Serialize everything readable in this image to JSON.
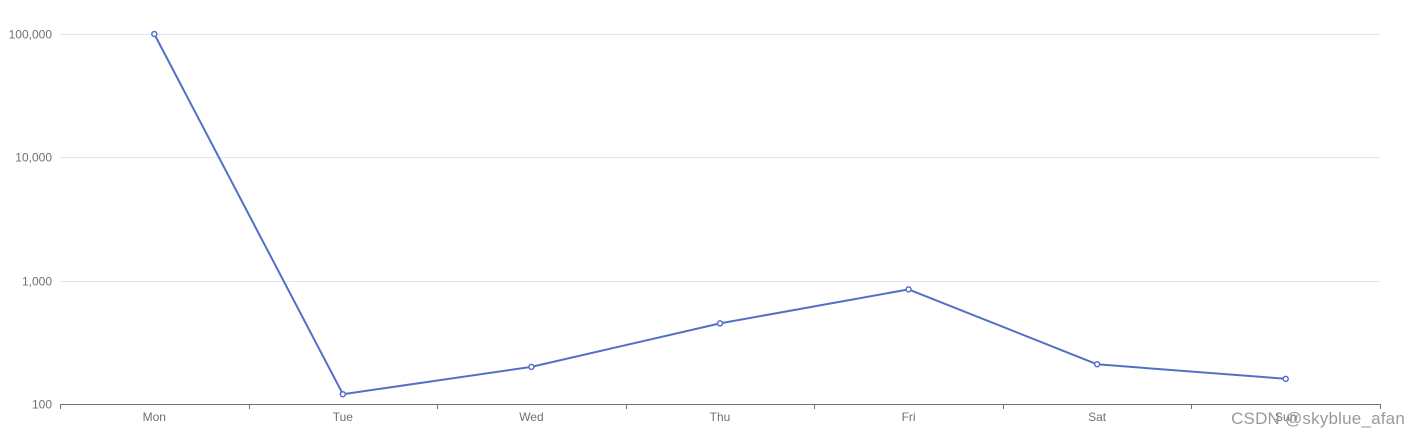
{
  "chart_data": {
    "type": "line",
    "yscale": "log",
    "ylim": [
      100,
      100000
    ],
    "y_ticks": [
      "100",
      "1,000",
      "10,000",
      "100,000"
    ],
    "y_tick_values": [
      100,
      1000,
      10000,
      100000
    ],
    "categories": [
      "Mon",
      "Tue",
      "Wed",
      "Thu",
      "Fri",
      "Sat",
      "Sun"
    ],
    "series": [
      {
        "values": [
          100000,
          120,
          200,
          450,
          850,
          210,
          160
        ]
      }
    ],
    "line_color": "#5470c6",
    "grid": true,
    "legend": "none"
  },
  "watermark": "CSDN @skyblue_afan"
}
